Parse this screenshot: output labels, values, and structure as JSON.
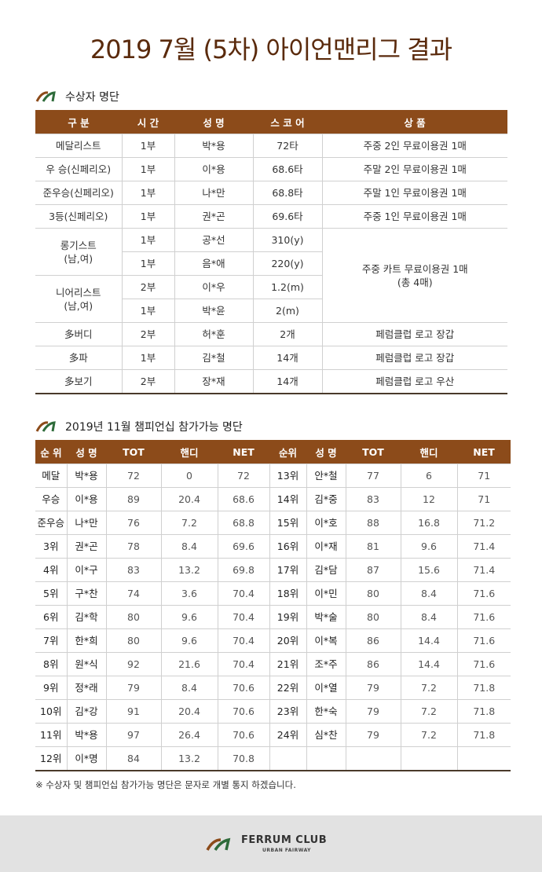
{
  "header": {
    "title": "2019 7월 (5차) 아이언맨리그 결과"
  },
  "awards": {
    "title": "수상자 명단",
    "columns": [
      "구 분",
      "시 간",
      "성 명",
      "스 코 어",
      "상 품"
    ],
    "rows": [
      [
        "메달리스트",
        "1부",
        "박*용",
        "72타",
        "주중 2인 무료이용권 1매"
      ],
      [
        "우 승(신페리오)",
        "1부",
        "이*용",
        "68.6타",
        "주말 2인 무료이용권 1매"
      ],
      [
        "준우승(신페리오)",
        "1부",
        "나*만",
        "68.8타",
        "주말 1인 무료이용권 1매"
      ],
      [
        "3등(신페리오)",
        "1부",
        "권*곤",
        "69.6타",
        "주중 1인 무료이용권 1매"
      ],
      [
        "롱기스트\n(남,여)",
        "1부",
        "공*선",
        "310(y)",
        "주중 카트 무료이용권 1매\n(총 4매)"
      ],
      [
        "1부",
        "음*애",
        "220(y)"
      ],
      [
        "니어리스트\n(남,여)",
        "2부",
        "이*우",
        "1.2(m)"
      ],
      [
        "1부",
        "박*윤",
        "2(m)"
      ],
      [
        "多버디",
        "2부",
        "허*훈",
        "2개",
        "페럼클럽 로고 장갑"
      ],
      [
        "多파",
        "1부",
        "김*철",
        "14개",
        "페럼클럽 로고 장갑"
      ],
      [
        "多보기",
        "2부",
        "장*재",
        "14개",
        "페럼클럽 로고 우산"
      ]
    ]
  },
  "championship": {
    "title": "2019년 11월 챔피언십 참가가능 명단",
    "columns": [
      "순 위",
      "성 명",
      "TOT",
      "핸디",
      "NET",
      "순위",
      "성 명",
      "TOT",
      "핸디",
      "NET"
    ],
    "rows": [
      [
        "메달",
        "박*용",
        72,
        0,
        72,
        "13위",
        "안*철",
        77,
        6,
        71
      ],
      [
        "우승",
        "이*용",
        89,
        20.4,
        68.6,
        "14위",
        "김*중",
        83,
        12,
        71
      ],
      [
        "준우승",
        "나*만",
        76,
        7.2,
        68.8,
        "15위",
        "이*호",
        88,
        16.8,
        71.2
      ],
      [
        "3위",
        "권*곤",
        78,
        8.4,
        69.6,
        "16위",
        "이*재",
        81,
        9.6,
        71.4
      ],
      [
        "4위",
        "이*구",
        83,
        13.2,
        69.8,
        "17위",
        "김*담",
        87,
        15.6,
        71.4
      ],
      [
        "5위",
        "구*찬",
        74,
        3.6,
        70.4,
        "18위",
        "이*민",
        80,
        8.4,
        71.6
      ],
      [
        "6위",
        "김*학",
        80,
        9.6,
        70.4,
        "19위",
        "박*술",
        80,
        8.4,
        71.6
      ],
      [
        "7위",
        "한*희",
        80,
        9.6,
        70.4,
        "20위",
        "이*복",
        86,
        14.4,
        71.6
      ],
      [
        "8위",
        "원*식",
        92,
        21.6,
        70.4,
        "21위",
        "조*주",
        86,
        14.4,
        71.6
      ],
      [
        "9위",
        "정*래",
        79,
        8.4,
        70.6,
        "22위",
        "이*열",
        79,
        7.2,
        71.8
      ],
      [
        "10위",
        "김*강",
        91,
        20.4,
        70.6,
        "23위",
        "한*숙",
        79,
        7.2,
        71.8
      ],
      [
        "11위",
        "박*용",
        97,
        26.4,
        70.6,
        "24위",
        "심*찬",
        79,
        7.2,
        71.8
      ],
      [
        "12위",
        "이*명",
        84,
        13.2,
        70.8
      ]
    ]
  },
  "note": "※ 수상자 및 챔피언십 참가가능 명단은 문자로 개별 통지 하겠습니다.",
  "footer": {
    "brand": "FERRUM CLUB",
    "tagline": "URBAN FAIRWAY"
  }
}
